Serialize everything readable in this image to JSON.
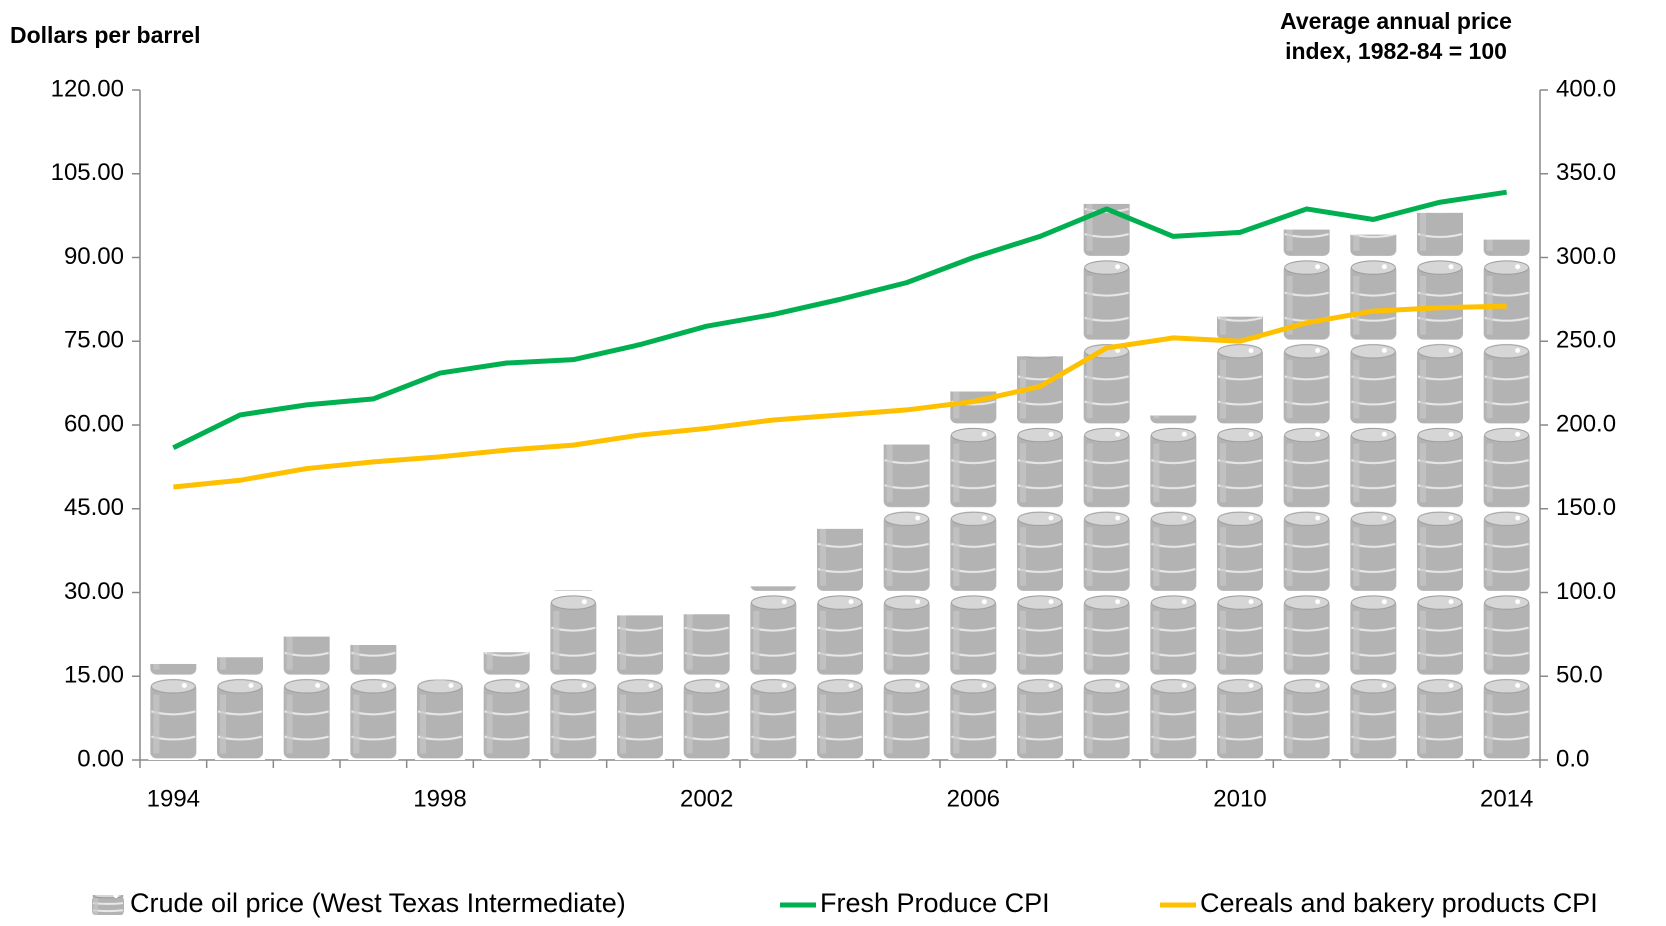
{
  "chart_data": {
    "type": "bar_line",
    "y_label": "Dollars per barrel",
    "y2_label": "Average annual price index, 1982-84 = 100",
    "categories": [
      "1994",
      null,
      null,
      null,
      "1998",
      null,
      null,
      null,
      "2002",
      null,
      null,
      null,
      "2006",
      null,
      null,
      null,
      "2010",
      null,
      null,
      null,
      "2014"
    ],
    "ylim": [
      0,
      120
    ],
    "yticks": [
      {
        "value": 0,
        "label": "0.00"
      },
      {
        "value": 15,
        "label": "15.00"
      },
      {
        "value": 30,
        "label": "30.00"
      },
      {
        "value": 45,
        "label": "45.00"
      },
      {
        "value": 60,
        "label": "60.00"
      },
      {
        "value": 75,
        "label": "75.00"
      },
      {
        "value": 90,
        "label": "90.00"
      },
      {
        "value": 105,
        "label": "105.00"
      },
      {
        "value": 120,
        "label": "120.00"
      }
    ],
    "y2lim": [
      0,
      400
    ],
    "y2ticks": [
      {
        "value": 0,
        "label": "0.0"
      },
      {
        "value": 50,
        "label": "50.0"
      },
      {
        "value": 100,
        "label": "100.0"
      },
      {
        "value": 150,
        "label": "150.0"
      },
      {
        "value": 200,
        "label": "200.0"
      },
      {
        "value": 250,
        "label": "250.0"
      },
      {
        "value": 300,
        "label": "300.0"
      },
      {
        "value": 350,
        "label": "350.0"
      },
      {
        "value": 400,
        "label": "400.0"
      }
    ],
    "series": [
      {
        "name": "Crude oil price (West Texas Intermediate)",
        "type": "bar",
        "color": "#b3b3b3",
        "values": [
          17.2,
          18.4,
          22.1,
          20.6,
          14.4,
          19.3,
          30.4,
          25.9,
          26.1,
          31.1,
          41.4,
          56.5,
          66.0,
          72.3,
          99.6,
          61.7,
          79.4,
          95.0,
          94.1,
          98.0,
          93.2
        ]
      },
      {
        "name": "Fresh Produce CPI",
        "type": "line",
        "axis": "y2",
        "color": "#00b050",
        "values": [
          186.4,
          206,
          212,
          215.6,
          231,
          237,
          239,
          248,
          259,
          266,
          275,
          285,
          300,
          312.6,
          329,
          312.6,
          315,
          329,
          322.7,
          333,
          339
        ]
      },
      {
        "name": "Cereals and bakery products CPI",
        "type": "line",
        "axis": "y2",
        "color": "#ffc000",
        "values": [
          163,
          167,
          174,
          178,
          181,
          185,
          188,
          194,
          198,
          203,
          206,
          209,
          214,
          223,
          246,
          252,
          250,
          261,
          268,
          270,
          271
        ]
      }
    ]
  }
}
